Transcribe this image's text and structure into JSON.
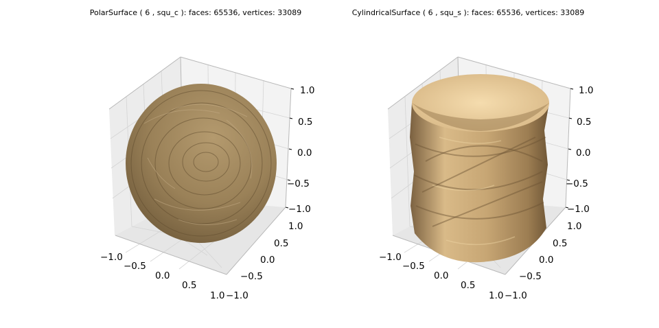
{
  "chart_data": [
    {
      "type": "3d-surface",
      "title": "PolarSurface ( 6 , squ_c ):  faces: 65536,  vertices: 33089",
      "xlabel": "",
      "ylabel": "",
      "zlabel": "",
      "xlim": [
        -1.0,
        1.0
      ],
      "ylim": [
        -1.0,
        1.0
      ],
      "zlim": [
        -1.0,
        1.0
      ],
      "x_ticks": [
        "−1.0",
        "−0.5",
        "0.0",
        "0.5",
        "1.0"
      ],
      "y_ticks": [
        "−1.0",
        "−0.5",
        "0.0",
        "0.5",
        "1.0"
      ],
      "z_ticks": [
        "−1.0",
        "−0.5",
        "0.0",
        "0.5",
        "1.0"
      ],
      "faces": 65536,
      "vertices": 33089,
      "surface_shape": "sphere",
      "surface_color": "#9c8560",
      "grid": true
    },
    {
      "type": "3d-surface",
      "title": "CylindricalSurface ( 6 , squ_s ):  faces: 65536,  vertices: 33089",
      "xlabel": "",
      "ylabel": "",
      "zlabel": "",
      "xlim": [
        -1.0,
        1.0
      ],
      "ylim": [
        -1.0,
        1.0
      ],
      "zlim": [
        -1.0,
        1.0
      ],
      "x_ticks": [
        "−1.0",
        "−0.5",
        "0.0",
        "0.5",
        "1.0"
      ],
      "y_ticks": [
        "−1.0",
        "−0.5",
        "0.0",
        "0.5",
        "1.0"
      ],
      "z_ticks": [
        "−1.0",
        "−0.5",
        "0.0",
        "0.5",
        "1.0"
      ],
      "faces": 65536,
      "vertices": 33089,
      "surface_shape": "cylinder",
      "surface_color": "#c9a878",
      "grid": true
    }
  ]
}
